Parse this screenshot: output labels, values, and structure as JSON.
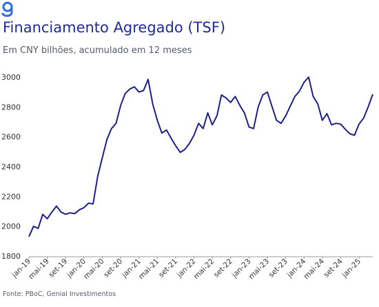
{
  "header": {
    "logo_icon": "genial-g-logo-icon",
    "title": "Financiamento Agregado (TSF)",
    "subtitle": "Em CNY bilhões, acumulado em 12 meses"
  },
  "footer": {
    "source": "Fonte: PBoC, Genial Investimentos"
  },
  "colors": {
    "line": "#1a1f8a",
    "text": "#1e2a9a",
    "axis_text": "#333333",
    "logo": "#2d6cdf"
  },
  "chart_data": {
    "type": "line",
    "title": "Financiamento Agregado (TSF)",
    "ylabel": "",
    "xlabel": "",
    "ylim": [
      1800,
      3000
    ],
    "yticks": [
      1800,
      2000,
      2200,
      2400,
      2600,
      2800,
      3000
    ],
    "grid": false,
    "legend": "none",
    "xtick_labels": [
      "jan-19",
      "mai-19",
      "set-19",
      "jan-20",
      "mai-20",
      "set-20",
      "jan-21",
      "mai-21",
      "set-21",
      "jan-22",
      "mai-22",
      "set-22",
      "jan-23",
      "mai-23",
      "set-23",
      "jan-24",
      "mai-24",
      "set-24",
      "jan-25"
    ],
    "x": [
      "jan-19",
      "fev-19",
      "mar-19",
      "abr-19",
      "mai-19",
      "jun-19",
      "jul-19",
      "ago-19",
      "set-19",
      "out-19",
      "nov-19",
      "dez-19",
      "jan-20",
      "fev-20",
      "mar-20",
      "abr-20",
      "mai-20",
      "jun-20",
      "jul-20",
      "ago-20",
      "set-20",
      "out-20",
      "nov-20",
      "dez-20",
      "jan-21",
      "fev-21",
      "mar-21",
      "abr-21",
      "mai-21",
      "jun-21",
      "jul-21",
      "ago-21",
      "set-21",
      "out-21",
      "nov-21",
      "dez-21",
      "jan-22",
      "fev-22",
      "mar-22",
      "abr-22",
      "mai-22",
      "jun-22",
      "jul-22",
      "ago-22",
      "set-22",
      "out-22",
      "nov-22",
      "dez-22",
      "jan-23",
      "fev-23",
      "mar-23",
      "abr-23",
      "mai-23",
      "jun-23",
      "jul-23",
      "ago-23",
      "set-23",
      "out-23",
      "nov-23",
      "dez-23",
      "jan-24",
      "fev-24",
      "mar-24",
      "abr-24",
      "mai-24",
      "jun-24",
      "jul-24",
      "ago-24",
      "set-24",
      "out-24",
      "nov-24",
      "dez-24",
      "jan-25",
      "fev-25",
      "mar-25",
      "abr-25"
    ],
    "series": [
      {
        "values": [
          1930,
          2000,
          1985,
          2080,
          2050,
          2095,
          2135,
          2095,
          2080,
          2090,
          2085,
          2110,
          2125,
          2155,
          2150,
          2335,
          2460,
          2580,
          2655,
          2690,
          2810,
          2890,
          2920,
          2935,
          2900,
          2910,
          2985,
          2820,
          2710,
          2625,
          2645,
          2590,
          2540,
          2495,
          2515,
          2555,
          2610,
          2690,
          2655,
          2760,
          2680,
          2740,
          2880,
          2860,
          2830,
          2870,
          2810,
          2760,
          2665,
          2655,
          2800,
          2880,
          2900,
          2805,
          2710,
          2690,
          2740,
          2805,
          2870,
          2905,
          2965,
          3000,
          2870,
          2820,
          2710,
          2755,
          2680,
          2690,
          2685,
          2650,
          2620,
          2610,
          2685,
          2725,
          2800,
          2885
        ]
      }
    ]
  }
}
